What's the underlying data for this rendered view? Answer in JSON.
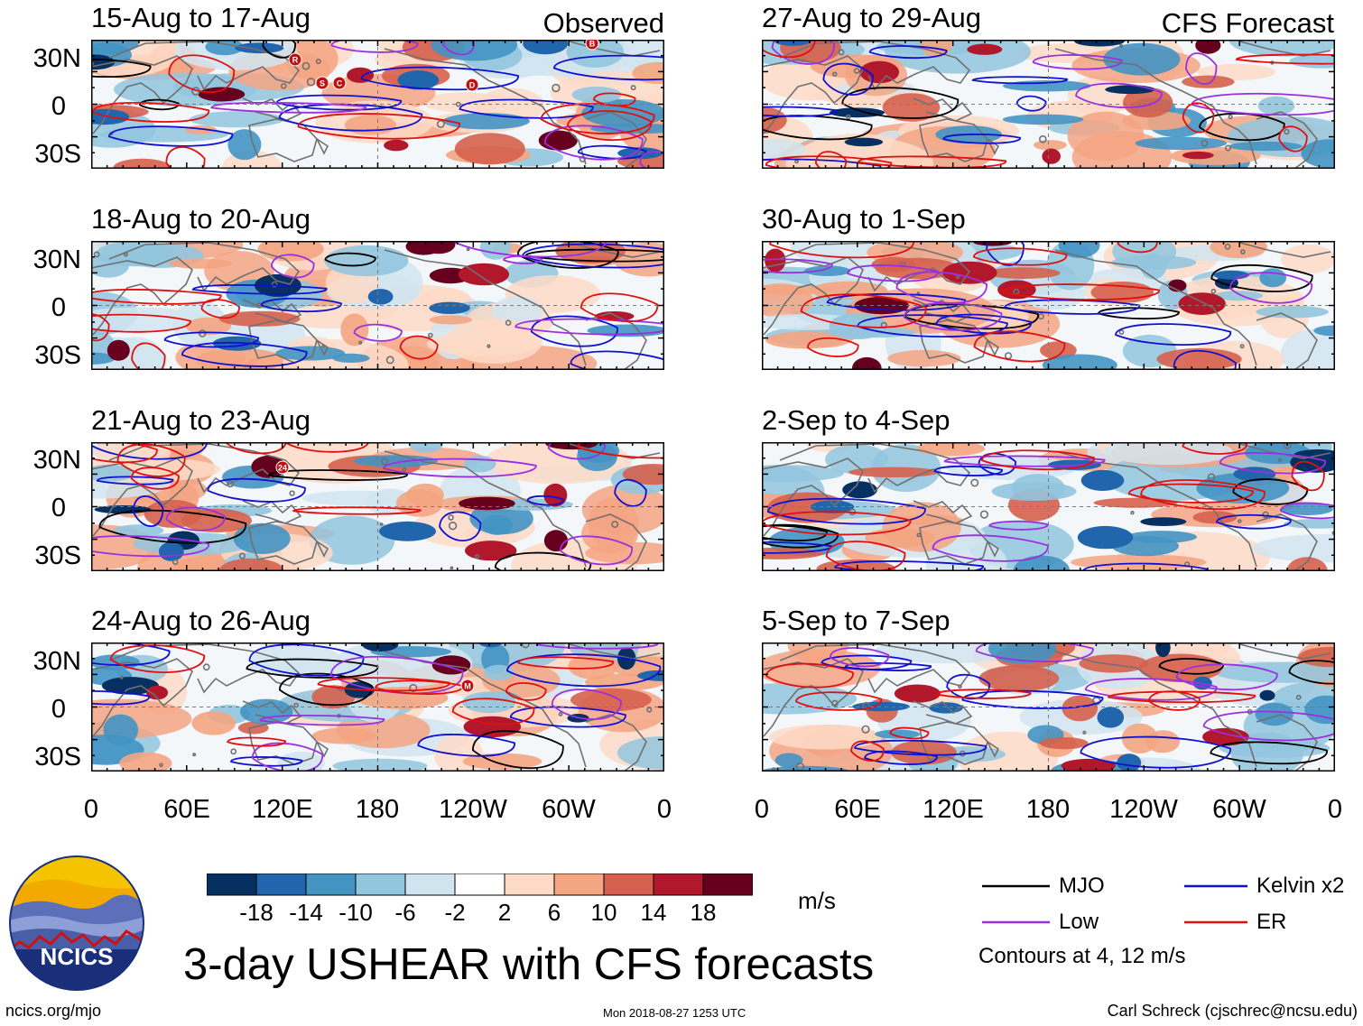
{
  "title": "3-day USHEAR with CFS forecasts",
  "labels": {
    "observed": "Observed",
    "forecast": "CFS Forecast"
  },
  "panels_observed": [
    {
      "title": "15-Aug to 17-Aug"
    },
    {
      "title": "18-Aug to 20-Aug"
    },
    {
      "title": "21-Aug to 23-Aug"
    },
    {
      "title": "24-Aug to 26-Aug"
    }
  ],
  "panels_forecast": [
    {
      "title": "27-Aug to 29-Aug"
    },
    {
      "title": "30-Aug to 1-Sep"
    },
    {
      "title": "2-Sep to 4-Sep"
    },
    {
      "title": "5-Sep to 7-Sep"
    }
  ],
  "lat_labels": [
    "30N",
    "0",
    "30S"
  ],
  "lon_labels": [
    "0",
    "60E",
    "120E",
    "180",
    "120W",
    "60W",
    "0"
  ],
  "colorbar": {
    "unit": "m/s",
    "ticks": [
      "-18",
      "-14",
      "-10",
      "-6",
      "-2",
      "2",
      "6",
      "10",
      "14",
      "18"
    ],
    "colors": [
      "#053061",
      "#2166ac",
      "#4393c3",
      "#92c5de",
      "#d1e5f0",
      "#ffffff",
      "#fddbc7",
      "#f4a582",
      "#d6604d",
      "#b2182b",
      "#67001f"
    ]
  },
  "legend": {
    "items": [
      {
        "label": "MJO",
        "color": "#000000"
      },
      {
        "label": "Kelvin x2",
        "color": "#1010d0"
      },
      {
        "label": "Low",
        "color": "#9b30e0"
      },
      {
        "label": "ER",
        "color": "#e01010"
      }
    ],
    "note": "Contours at 4, 12 m/s"
  },
  "logo_text": "NCICS",
  "footer": {
    "left": "ncics.org/mjo",
    "center": "Mon 2018-08-27 1253 UTC",
    "right": "Carl Schreck (cjschrec@ncsu.edu)"
  },
  "storm_markers": [
    {
      "panel": "obs-0",
      "label": "R"
    },
    {
      "panel": "obs-0",
      "label": "S"
    },
    {
      "panel": "obs-0",
      "label": "C"
    },
    {
      "panel": "obs-0",
      "label": "B"
    },
    {
      "panel": "obs-0",
      "label": "D"
    },
    {
      "panel": "obs-2",
      "label": "24"
    },
    {
      "panel": "obs-3",
      "label": "M"
    }
  ]
}
